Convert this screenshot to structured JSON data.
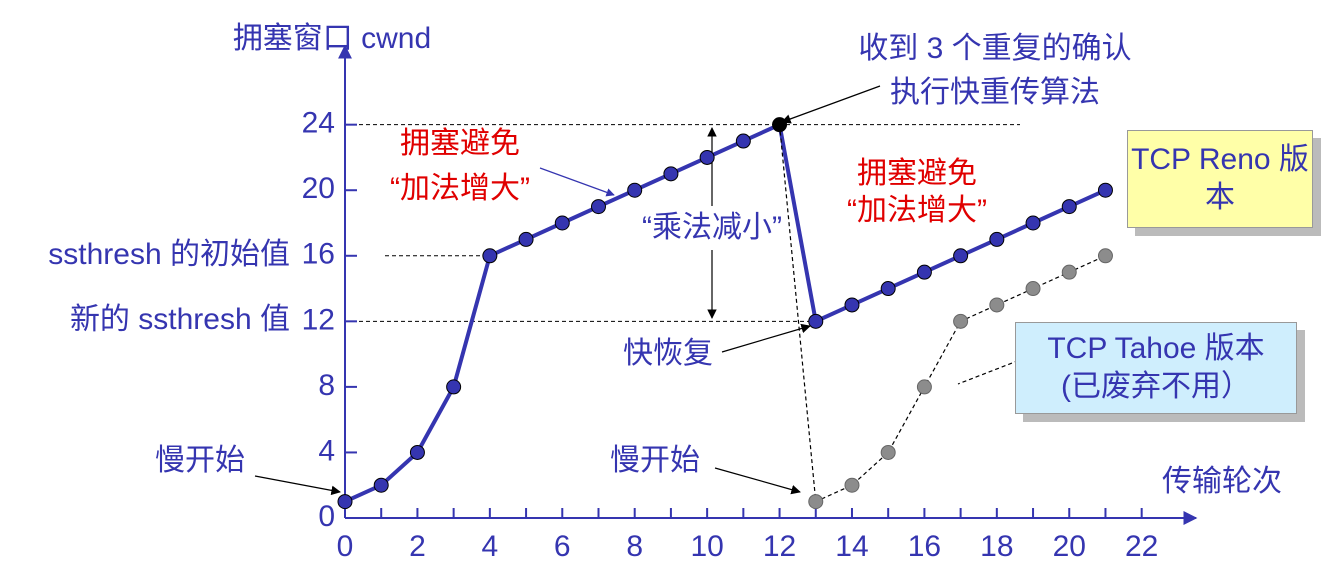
{
  "chart_data": {
    "type": "line",
    "y_label": "拥塞窗口 cwnd",
    "x_label": "传输轮次",
    "x": [
      0,
      1,
      2,
      3,
      4,
      5,
      6,
      7,
      8,
      9,
      10,
      11,
      12,
      13,
      14,
      15,
      16,
      17,
      18,
      19,
      20,
      21
    ],
    "series": [
      {
        "name": "TCP Reno 版本",
        "color": "#3535b0",
        "values": [
          1,
          2,
          4,
          8,
          16,
          17,
          18,
          19,
          20,
          21,
          22,
          23,
          24,
          12,
          13,
          14,
          15,
          16,
          17,
          18,
          19,
          20
        ]
      },
      {
        "name": "TCP Tahoe 版本",
        "color": "#8c8c8c",
        "values": [
          null,
          null,
          null,
          null,
          null,
          null,
          null,
          null,
          null,
          null,
          null,
          null,
          24,
          1,
          2,
          4,
          8,
          12,
          13,
          14,
          15,
          16
        ]
      }
    ],
    "xlim": [
      0,
      23.5
    ],
    "ylim": [
      0,
      28.8
    ],
    "xticks": [
      0,
      2,
      4,
      6,
      8,
      10,
      12,
      14,
      16,
      18,
      20,
      22
    ],
    "yticks": [
      0,
      4,
      8,
      12,
      16,
      20,
      24
    ],
    "annotations": [
      "慢开始",
      "慢开始",
      "拥塞避免",
      "“加法增大”",
      "拥塞避免",
      "“加法增大”",
      "“乘法减小”",
      "收到 3 个重复的确认",
      "执行快重传算法",
      "快恢复",
      "(已废弃不用）",
      "ssthresh 的初始值",
      "新的 ssthresh 值"
    ]
  }
}
